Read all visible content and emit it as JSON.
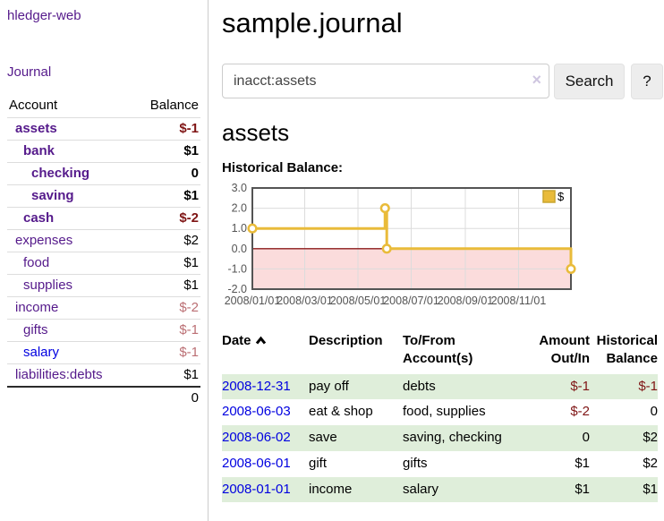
{
  "colors": {
    "link_purple": "#551a8b",
    "link_blue": "#0000e0",
    "negative_dark": "#7f1515",
    "negative_muted": "#bb6f74",
    "row_green": "#dfeeda",
    "chart_gold": "#e9bb3a",
    "chart_negative_region": "#fbdcdc",
    "chart_zero_line": "#8b1a1a",
    "chart_border": "#545454"
  },
  "sidebar": {
    "brand": "hledger-web",
    "nav_journal": "Journal",
    "accounts": {
      "headers": {
        "account": "Account",
        "balance": "Balance"
      },
      "rows": [
        {
          "account": "assets",
          "balance": "$-1",
          "depth": 1,
          "bold": true,
          "negative": true
        },
        {
          "account": "bank",
          "balance": "$1",
          "depth": 2,
          "bold": true,
          "negative": false
        },
        {
          "account": "checking",
          "balance": "0",
          "depth": 3,
          "bold": true,
          "negative": false
        },
        {
          "account": "saving",
          "balance": "$1",
          "depth": 3,
          "bold": true,
          "negative": false
        },
        {
          "account": "cash",
          "balance": "$-2",
          "depth": 2,
          "bold": true,
          "negative": true
        },
        {
          "account": "expenses",
          "balance": "$2",
          "depth": 1,
          "bold": false,
          "negative": false
        },
        {
          "account": "food",
          "balance": "$1",
          "depth": 2,
          "bold": false,
          "negative": false
        },
        {
          "account": "supplies",
          "balance": "$1",
          "depth": 2,
          "bold": false,
          "negative": false
        },
        {
          "account": "income",
          "balance": "$-2",
          "depth": 1,
          "bold": false,
          "negative": true
        },
        {
          "account": "gifts",
          "balance": "$-1",
          "depth": 2,
          "bold": false,
          "negative": true
        },
        {
          "account": "salary",
          "balance": "$-1",
          "depth": 2,
          "bold": false,
          "negative": true,
          "unvisited": true
        },
        {
          "account": "liabilities:debts",
          "balance": "$1",
          "depth": 1,
          "bold": false,
          "negative": false
        }
      ],
      "total": "0"
    }
  },
  "main": {
    "title": "sample.journal",
    "search": {
      "value": "inacct:assets",
      "clear_icon": "×",
      "button_label": "Search",
      "help_label": "?"
    },
    "account_heading": "assets",
    "chart_label": "Historical Balance:"
  },
  "chart_data": {
    "type": "line",
    "title": "Historical Balance:",
    "step": true,
    "series": [
      {
        "name": "$",
        "color": "#e9bb3a",
        "points": [
          {
            "date": "2008-01-01",
            "value": 1
          },
          {
            "date": "2008-06-01",
            "value": 2
          },
          {
            "date": "2008-06-03",
            "value": 0
          },
          {
            "date": "2008-12-31",
            "value": -1
          }
        ]
      }
    ],
    "x_start": "2008-01-01",
    "x_end": "2008-12-31",
    "x_ticks": [
      {
        "label": "2008/01/01",
        "date": "2008-01-01"
      },
      {
        "label": "2008/03/01",
        "date": "2008-03-01"
      },
      {
        "label": "2008/05/01",
        "date": "2008-05-01"
      },
      {
        "label": "2008/07/01",
        "date": "2008-07-01"
      },
      {
        "label": "2008/09/01",
        "date": "2008-09-01"
      },
      {
        "label": "2008/11/01",
        "date": "2008-11-01"
      }
    ],
    "y_ticks": [
      "3.0",
      "2.0",
      "1.0",
      "0.0",
      "-1.0",
      "-2.0"
    ],
    "ylim": [
      -2,
      3
    ],
    "grid": true,
    "legend": {
      "label": "$",
      "position": "top-right"
    },
    "negative_region_shaded": true
  },
  "register": {
    "headers": {
      "date": "Date",
      "description": "Description",
      "accounts": "To/From Account(s)",
      "amount": "Amount Out/In",
      "balance": "Historical Balance"
    },
    "rows": [
      {
        "date": "2008-12-31",
        "description": "pay off",
        "accounts": "debts",
        "amount": "$-1",
        "balance": "$-1"
      },
      {
        "date": "2008-06-03",
        "description": "eat & shop",
        "accounts": "food, supplies",
        "amount": "$-2",
        "balance": "0"
      },
      {
        "date": "2008-06-02",
        "description": "save",
        "accounts": "saving, checking",
        "amount": "0",
        "balance": "$2"
      },
      {
        "date": "2008-06-01",
        "description": "gift",
        "accounts": "gifts",
        "amount": "$1",
        "balance": "$2"
      },
      {
        "date": "2008-01-01",
        "description": "income",
        "accounts": "salary",
        "amount": "$1",
        "balance": "$1"
      }
    ]
  }
}
